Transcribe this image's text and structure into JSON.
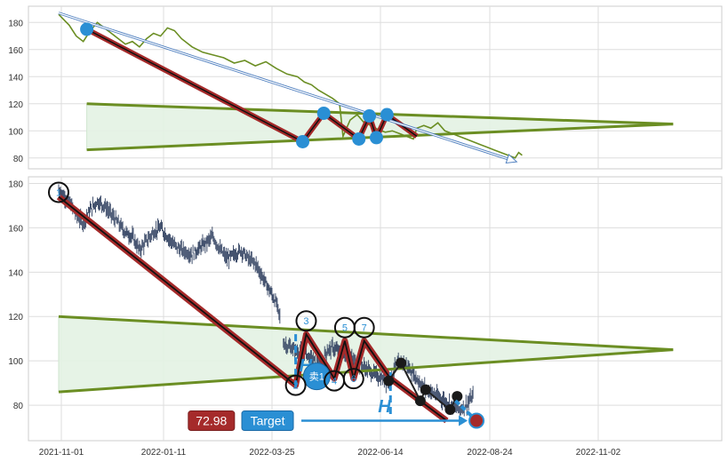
{
  "chart_data": [
    {
      "type": "line",
      "panel": "overview",
      "title": "",
      "xlabel": "",
      "ylabel": "",
      "ylim": [
        72,
        192
      ],
      "yticks": [
        80,
        100,
        120,
        140,
        160,
        180
      ],
      "grid": true,
      "colors": {
        "price": "#6b8e23",
        "zigzag": "#a52a2a",
        "pivot": "#2a8fd4",
        "trend_arrow": "#4f7fbf",
        "triangle_fill": "#e3f2e3"
      },
      "price_series": [
        [
          0,
          186
        ],
        [
          6,
          178
        ],
        [
          10,
          170
        ],
        [
          14,
          166
        ],
        [
          18,
          174
        ],
        [
          22,
          180
        ],
        [
          26,
          176
        ],
        [
          30,
          172
        ],
        [
          34,
          168
        ],
        [
          38,
          164
        ],
        [
          42,
          166
        ],
        [
          46,
          162
        ],
        [
          50,
          168
        ],
        [
          54,
          172
        ],
        [
          58,
          170
        ],
        [
          62,
          176
        ],
        [
          66,
          174
        ],
        [
          70,
          168
        ],
        [
          76,
          162
        ],
        [
          82,
          158
        ],
        [
          88,
          156
        ],
        [
          94,
          154
        ],
        [
          100,
          150
        ],
        [
          106,
          152
        ],
        [
          112,
          148
        ],
        [
          118,
          151
        ],
        [
          124,
          146
        ],
        [
          130,
          142
        ],
        [
          136,
          140
        ],
        [
          140,
          136
        ],
        [
          144,
          134
        ],
        [
          148,
          130
        ],
        [
          152,
          127
        ],
        [
          156,
          124
        ],
        [
          160,
          120
        ],
        [
          162,
          96
        ],
        [
          166,
          108
        ],
        [
          170,
          112
        ],
        [
          174,
          106
        ],
        [
          178,
          104
        ],
        [
          182,
          101
        ],
        [
          186,
          99
        ],
        [
          190,
          100
        ],
        [
          194,
          98
        ],
        [
          198,
          96
        ],
        [
          202,
          94
        ],
        [
          204,
          102
        ],
        [
          208,
          104
        ],
        [
          212,
          102
        ],
        [
          216,
          106
        ],
        [
          220,
          100
        ],
        [
          224,
          98
        ],
        [
          228,
          96
        ],
        [
          232,
          94
        ],
        [
          236,
          92
        ],
        [
          240,
          90
        ],
        [
          244,
          88
        ],
        [
          248,
          86
        ],
        [
          252,
          84
        ],
        [
          256,
          82
        ],
        [
          260,
          80
        ],
        [
          262,
          84
        ],
        [
          264,
          82
        ]
      ],
      "zigzag": [
        [
          16,
          175
        ],
        [
          139,
          92
        ],
        [
          151,
          113
        ],
        [
          171,
          94
        ],
        [
          177,
          111
        ],
        [
          181,
          95
        ],
        [
          187,
          112
        ],
        [
          204,
          96
        ]
      ],
      "pivots": [
        [
          16,
          175
        ],
        [
          139,
          92
        ],
        [
          151,
          113
        ],
        [
          171,
          94
        ],
        [
          177,
          111
        ],
        [
          181,
          95
        ],
        [
          187,
          112
        ]
      ],
      "triangle_upper": [
        [
          16,
          120
        ],
        [
          350,
          105
        ]
      ],
      "triangle_lower": [
        [
          16,
          86
        ],
        [
          350,
          105
        ]
      ],
      "trend_arrow": [
        [
          0,
          187
        ],
        [
          259,
          78
        ]
      ]
    },
    {
      "type": "candlestick",
      "panel": "detail",
      "title": "",
      "xlabel": "",
      "ylabel": "",
      "ylim": [
        64,
        183
      ],
      "yticks": [
        80,
        100,
        120,
        140,
        160,
        180
      ],
      "x_tick_labels": [
        "2021-11-01",
        "2022-01-11",
        "2022-03-25",
        "2022-06-14",
        "2022-08-24",
        "2022-11-02"
      ],
      "grid": true,
      "colors": {
        "candles": "#2f3f5f",
        "zigzag": "#a52a2a",
        "triangle": "#6b8e23",
        "triangle_fill": "#e3f2e3",
        "circle_label": "#2a8fd4",
        "marker": "#1a1a1a",
        "target": "#2a8fd4",
        "price_box": "#a52a2a"
      },
      "price_path": [
        [
          0,
          177
        ],
        [
          6,
          172
        ],
        [
          10,
          166
        ],
        [
          14,
          162
        ],
        [
          18,
          168
        ],
        [
          22,
          172
        ],
        [
          26,
          170
        ],
        [
          30,
          166
        ],
        [
          34,
          162
        ],
        [
          38,
          158
        ],
        [
          42,
          156
        ],
        [
          46,
          150
        ],
        [
          50,
          154
        ],
        [
          54,
          158
        ],
        [
          58,
          160
        ],
        [
          62,
          156
        ],
        [
          66,
          152
        ],
        [
          70,
          150
        ],
        [
          76,
          148
        ],
        [
          82,
          152
        ],
        [
          88,
          156
        ],
        [
          92,
          150
        ],
        [
          96,
          146
        ],
        [
          100,
          148
        ],
        [
          104,
          150
        ],
        [
          108,
          146
        ],
        [
          112,
          144
        ],
        [
          116,
          138
        ],
        [
          120,
          132
        ],
        [
          124,
          126
        ],
        [
          126,
          120
        ],
        [
          128,
          108
        ],
        [
          132,
          106
        ],
        [
          136,
          104
        ],
        [
          140,
          104
        ],
        [
          144,
          101
        ],
        [
          148,
          98
        ],
        [
          150,
          96
        ],
        [
          152,
          104
        ],
        [
          156,
          106
        ],
        [
          160,
          104
        ],
        [
          164,
          102
        ],
        [
          168,
          100
        ],
        [
          172,
          98
        ],
        [
          176,
          96
        ],
        [
          180,
          94
        ],
        [
          184,
          92
        ],
        [
          188,
          90
        ],
        [
          192,
          98
        ],
        [
          196,
          100
        ],
        [
          200,
          96
        ],
        [
          204,
          92
        ],
        [
          208,
          88
        ],
        [
          212,
          86
        ],
        [
          216,
          84
        ],
        [
          220,
          82
        ],
        [
          224,
          80
        ],
        [
          228,
          78
        ],
        [
          232,
          80
        ],
        [
          236,
          84
        ]
      ],
      "gap_start": 126,
      "gap_end": 128,
      "zigzag": [
        [
          0,
          174
        ],
        [
          135,
          89
        ],
        [
          141,
          112
        ],
        [
          157,
          92
        ],
        [
          163,
          109
        ],
        [
          168,
          92
        ],
        [
          174,
          109
        ],
        [
          189,
          92
        ],
        [
          221,
          73
        ]
      ],
      "numbered_points": [
        {
          "label": "1",
          "x": 0,
          "y": 176
        },
        {
          "label": "2",
          "x": 135,
          "y": 89
        },
        {
          "label": "3",
          "x": 141,
          "y": 118
        },
        {
          "label": "4",
          "x": 157,
          "y": 91
        },
        {
          "label": "5",
          "x": 163,
          "y": 115
        },
        {
          "label": "6",
          "x": 168,
          "y": 92
        },
        {
          "label": "7",
          "x": 174,
          "y": 115
        }
      ],
      "triangle_upper": [
        [
          0,
          120
        ],
        [
          350,
          105
        ]
      ],
      "triangle_lower": [
        [
          0,
          86
        ],
        [
          350,
          105
        ]
      ],
      "h_markers": [
        {
          "label": "H",
          "x": 135,
          "y_from": 88,
          "y_to": 114
        },
        {
          "label": "H",
          "x": 189,
          "y_from": 76,
          "y_to": 96
        }
      ],
      "black_dots": [
        [
          188,
          91
        ],
        [
          195,
          99
        ],
        [
          206,
          82
        ],
        [
          209,
          87
        ],
        [
          223,
          78
        ],
        [
          227,
          84
        ]
      ],
      "sell_badge": {
        "label": "卖1",
        "x": 147,
        "y": 93
      },
      "price_box": {
        "label": "72.98",
        "x": 87,
        "y": 73
      },
      "target_box": {
        "label": "Target",
        "x": 119,
        "y": 73
      },
      "target_point": [
        238,
        73
      ]
    }
  ]
}
